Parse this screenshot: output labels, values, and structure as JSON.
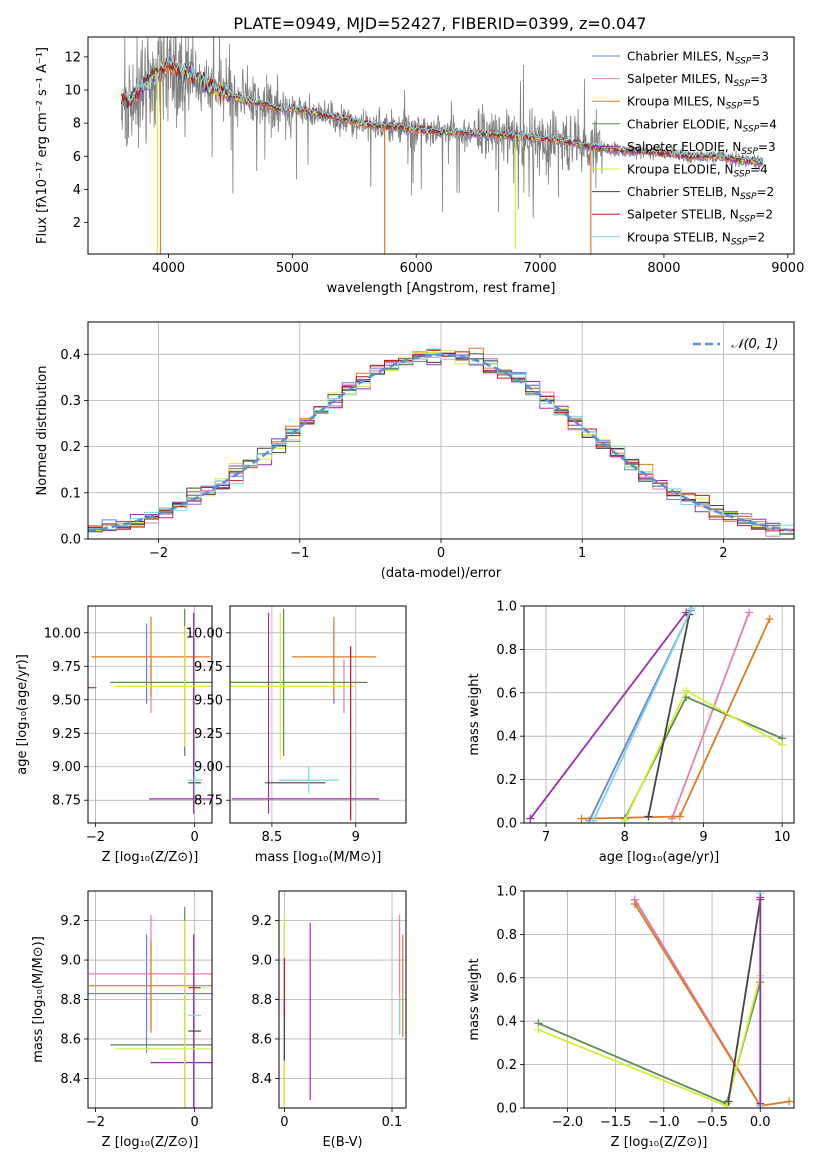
{
  "page_title": "PLATE=0949, MJD=52427, FIBERID=0399, z=0.047",
  "colors": {
    "Chabrier MILES": "#6b7fd7",
    "Salpeter MILES": "#e57fb1",
    "Kroupa MILES": "#e07a22",
    "Chabrier ELODIE": "#5a8a55",
    "Salpeter ELODIE": "#9b2fae",
    "Kroupa ELODIE": "#d4ef3a",
    "Chabrier STELIB": "#444444",
    "Salpeter STELIB": "#c2181f",
    "Kroupa STELIB": "#7fd6e0",
    "data": "#808080",
    "normal": "#5b8fd6"
  },
  "chart_data": [
    {
      "id": "spectrum",
      "type": "line",
      "title": "PLATE=0949, MJD=52427, FIBERID=0399, z=0.047",
      "xlabel": "wavelength [Angstrom, rest frame]",
      "ylabel": "Flux [fλ10⁻¹⁷ erg cm⁻² s⁻¹ A⁻¹]",
      "xlim": [
        3350,
        9050
      ],
      "ylim": [
        0.1,
        13.2
      ],
      "xticks": [
        4000,
        5000,
        6000,
        7000,
        8000,
        9000
      ],
      "yticks": [
        2,
        4,
        6,
        8,
        10,
        12
      ],
      "grid": false,
      "legend_position": "top-right",
      "legend": [
        {
          "label": "Chabrier MILES, N",
          "sub": "SSP",
          "tail": "=3",
          "color": "#6b7fd7"
        },
        {
          "label": "Salpeter MILES, N",
          "sub": "SSP",
          "tail": "=3",
          "color": "#e57fb1"
        },
        {
          "label": "Kroupa MILES, N",
          "sub": "SSP",
          "tail": "=5",
          "color": "#e07a22"
        },
        {
          "label": "Chabrier ELODIE, N",
          "sub": "SSP",
          "tail": "=4",
          "color": "#5a8a55"
        },
        {
          "label": "Salpeter ELODIE, N",
          "sub": "SSP",
          "tail": "=3",
          "color": "#9b2fae"
        },
        {
          "label": "Kroupa ELODIE, N",
          "sub": "SSP",
          "tail": "=4",
          "color": "#d4ef3a"
        },
        {
          "label": "Chabrier STELIB, N",
          "sub": "SSP",
          "tail": "=2",
          "color": "#444444"
        },
        {
          "label": "Salpeter STELIB, N",
          "sub": "SSP",
          "tail": "=2",
          "color": "#c2181f"
        },
        {
          "label": "Kroupa STELIB, N",
          "sub": "SSP",
          "tail": "=2",
          "color": "#7fd6e0"
        }
      ],
      "continuum": {
        "x": [
          3620,
          3700,
          3800,
          3900,
          4000,
          4100,
          4200,
          4300,
          4400,
          4500,
          4600,
          4700,
          4800,
          4900,
          5000,
          5200,
          5400,
          5600,
          5800,
          6000,
          6200,
          6400,
          6600,
          6800,
          7000,
          7200,
          7400,
          7600,
          7800,
          8000,
          8200,
          8400,
          8600,
          8800
        ],
        "y": [
          9.6,
          9.4,
          10.3,
          10.9,
          11.6,
          11.1,
          10.9,
          10.3,
          10.0,
          9.7,
          9.4,
          9.3,
          9.1,
          8.8,
          8.9,
          8.6,
          8.3,
          7.9,
          7.8,
          7.6,
          7.5,
          7.4,
          7.3,
          7.2,
          7.1,
          6.9,
          6.6,
          6.4,
          6.3,
          6.2,
          6.0,
          6.0,
          5.8,
          5.6
        ]
      },
      "spikes": [
        {
          "x": 3910,
          "y": 0.1,
          "color": "#d4ef3a"
        },
        {
          "x": 3935,
          "y": 0.1,
          "color": "#e07a22"
        },
        {
          "x": 5745,
          "y": 0.1,
          "color": "#e07a22"
        },
        {
          "x": 6800,
          "y": 0.4,
          "color": "#d4ef3a"
        },
        {
          "x": 7410,
          "y": 0.1,
          "color": "#e07a22"
        }
      ]
    },
    {
      "id": "residuals",
      "type": "bar",
      "xlabel": "(data-model)/error",
      "ylabel": "Normed distribution",
      "xlim": [
        -2.5,
        2.5
      ],
      "ylim": [
        0.0,
        0.47
      ],
      "xticks": [
        -2,
        -1,
        0,
        1,
        2
      ],
      "yticks": [
        0.0,
        0.1,
        0.2,
        0.3,
        0.4
      ],
      "grid": true,
      "bin_width": 0.1,
      "legend": [
        {
          "label": "𝒩(0, 1)",
          "color": "#5b8fd6",
          "style": "dashed"
        }
      ],
      "legend_position": "top-right"
    },
    {
      "id": "age-vs-Z",
      "type": "scatter",
      "xlabel": "Z [log₁₀(Z/Z⊙)]",
      "ylabel": "age  [log₁₀(age/yr)]",
      "xlim": [
        -2.15,
        0.35
      ],
      "ylim": [
        8.58,
        10.2
      ],
      "xticks": [
        -2,
        0
      ],
      "yticks": [
        8.75,
        9.0,
        9.25,
        9.5,
        9.75,
        10.0
      ],
      "ytick_labels": [
        "8.75",
        "9.00",
        "9.25",
        "9.50",
        "9.75",
        "10.00"
      ],
      "grid": true,
      "series": [
        {
          "color": "#6b7fd7",
          "x": -0.97,
          "y": 9.77,
          "xerr": 0.0,
          "yerr": 0.3
        },
        {
          "color": "#e57fb1",
          "x": -0.88,
          "y": 9.6,
          "xerr": 0.0,
          "yerr": 0.2
        },
        {
          "color": "#e07a22",
          "x": -0.88,
          "y": 9.82,
          "xerr": 1.2,
          "yerr": 0.3
        },
        {
          "color": "#5a8a55",
          "x": -0.2,
          "y": 9.63,
          "xerr": 1.5,
          "yerr": 0.55
        },
        {
          "color": "#9b2fae",
          "x": -2.1,
          "y": 9.59,
          "xerr": 0.0,
          "yerr": 0.0
        },
        {
          "color": "#9b2fae",
          "x": -0.02,
          "y": 9.4,
          "xerr": 0.0,
          "yerr": 0.75
        },
        {
          "color": "#9b2fae",
          "x": -0.02,
          "y": 8.76,
          "xerr": 0.9,
          "yerr": 0.0
        },
        {
          "color": "#d4ef3a",
          "x": -0.2,
          "y": 9.6,
          "xerr": 1.4,
          "yerr": 0.45
        },
        {
          "color": "#444444",
          "x": 0.0,
          "y": 8.88,
          "xerr": 0.13,
          "yerr": 0.0
        },
        {
          "color": "#7fd6e0",
          "x": 0.0,
          "y": 8.9,
          "xerr": 0.15,
          "yerr": 0.1
        }
      ]
    },
    {
      "id": "age-vs-mass",
      "type": "scatter",
      "xlabel": "mass [log₁₀(M/M⊙)]",
      "xlim": [
        8.25,
        9.3
      ],
      "ylim": [
        8.58,
        10.2
      ],
      "xticks": [
        8.5,
        9.0
      ],
      "yticks": [
        8.75,
        9.0,
        9.25,
        9.5,
        9.75,
        10.0
      ],
      "ytick_labels": [
        "8.75",
        "9.00",
        "9.25",
        "9.50",
        "9.75",
        "10.00"
      ],
      "grid": true,
      "series": [
        {
          "color": "#6b7fd7",
          "x": 8.87,
          "y": 9.77,
          "xerr": 0.0,
          "yerr": 0.3
        },
        {
          "color": "#e57fb1",
          "x": 8.93,
          "y": 9.6,
          "xerr": 0.0,
          "yerr": 0.2
        },
        {
          "color": "#e07a22",
          "x": 8.87,
          "y": 9.82,
          "xerr": 0.25,
          "yerr": 0.3
        },
        {
          "color": "#5a8a55",
          "x": 8.57,
          "y": 9.63,
          "xerr": 0.5,
          "yerr": 0.55
        },
        {
          "color": "#9b2fae",
          "x": 8.48,
          "y": 9.4,
          "xerr": 0.0,
          "yerr": 0.75
        },
        {
          "color": "#9b2fae",
          "x": 8.7,
          "y": 8.76,
          "xerr": 0.44,
          "yerr": 0.0
        },
        {
          "color": "#d4ef3a",
          "x": 8.55,
          "y": 9.6,
          "xerr": 0.45,
          "yerr": 0.55
        },
        {
          "color": "#444444",
          "x": 8.64,
          "y": 8.88,
          "xerr": 0.18,
          "yerr": 0.0
        },
        {
          "color": "#7fd6e0",
          "x": 8.72,
          "y": 8.9,
          "xerr": 0.18,
          "yerr": 0.1
        },
        {
          "color": "#c2181f",
          "x": 8.97,
          "y": 9.25,
          "xerr": 0.0,
          "yerr": 0.65
        }
      ]
    },
    {
      "id": "weight-vs-age",
      "type": "line",
      "xlabel": "age  [log₁₀(age/yr)]",
      "ylabel": "mass weight",
      "xlim": [
        6.72,
        10.15
      ],
      "ylim": [
        0.0,
        1.0
      ],
      "xticks": [
        7,
        8,
        9,
        10
      ],
      "yticks": [
        0.0,
        0.2,
        0.4,
        0.6,
        0.8,
        1.0
      ],
      "grid": true,
      "series": [
        {
          "color": "#6b7fd7",
          "x": [
            7.55,
            8.84
          ],
          "y": [
            0.01,
            0.98
          ]
        },
        {
          "color": "#e57fb1",
          "x": [
            8.6,
            9.58
          ],
          "y": [
            0.02,
            0.97
          ]
        },
        {
          "color": "#e07a22",
          "x": [
            7.45,
            8.7,
            9.84
          ],
          "y": [
            0.02,
            0.03,
            0.94
          ]
        },
        {
          "color": "#5a8a55",
          "x": [
            8.0,
            8.78,
            10.0
          ],
          "y": [
            0.02,
            0.58,
            0.39
          ]
        },
        {
          "color": "#9b2fae",
          "x": [
            6.8,
            8.78
          ],
          "y": [
            0.02,
            0.97
          ]
        },
        {
          "color": "#d4ef3a",
          "x": [
            8.0,
            8.78,
            10.0
          ],
          "y": [
            0.01,
            0.61,
            0.36
          ]
        },
        {
          "color": "#444444",
          "x": [
            8.3,
            8.82
          ],
          "y": [
            0.03,
            0.96
          ]
        },
        {
          "color": "#7fd6e0",
          "x": [
            7.6,
            8.85
          ],
          "y": [
            0.01,
            0.99
          ]
        }
      ]
    },
    {
      "id": "mass-vs-Z",
      "type": "scatter",
      "xlabel": "Z [log₁₀(Z/Z⊙)]",
      "ylabel": "mass [log₁₀(M/M⊙)]",
      "xlim": [
        -2.15,
        0.35
      ],
      "ylim": [
        8.25,
        9.35
      ],
      "xticks": [
        -2,
        0
      ],
      "yticks": [
        8.4,
        8.6,
        8.8,
        9.0,
        9.2
      ],
      "grid": true,
      "series": [
        {
          "color": "#6b7fd7",
          "x": -0.97,
          "y": 8.83,
          "xerr": 1.8,
          "yerr": 0.3
        },
        {
          "color": "#e57fb1",
          "x": -0.88,
          "y": 8.93,
          "xerr": 1.25,
          "yerr": 0.3
        },
        {
          "color": "#e07a22",
          "x": -0.88,
          "y": 8.87,
          "xerr": 1.25,
          "yerr": 0.23
        },
        {
          "color": "#5a8a55",
          "x": -0.2,
          "y": 8.57,
          "xerr": 1.5,
          "yerr": 0.7
        },
        {
          "color": "#9b2fae",
          "x": -0.02,
          "y": 8.48,
          "xerr": 0.87,
          "yerr": 0.65
        },
        {
          "color": "#d4ef3a",
          "x": -0.2,
          "y": 8.55,
          "xerr": 1.4,
          "yerr": 0.65
        },
        {
          "color": "#444444",
          "x": 0.0,
          "y": 8.64,
          "xerr": 0.13,
          "yerr": 0.0
        },
        {
          "color": "#7fd6e0",
          "x": 0.0,
          "y": 8.72,
          "xerr": 0.13,
          "yerr": 0.0
        },
        {
          "color": "#c2181f",
          "x": 0.0,
          "y": 8.86,
          "xerr": 0.12,
          "yerr": 0.0
        }
      ]
    },
    {
      "id": "mass-vs-EBV",
      "type": "scatter",
      "xlabel": "E(B-V)",
      "xlim": [
        -0.005,
        0.113
      ],
      "ylim": [
        8.25,
        9.35
      ],
      "xticks": [
        0.0,
        0.1
      ],
      "yticks": [
        8.4,
        8.6,
        8.8,
        9.0,
        9.2
      ],
      "grid": true,
      "series": [
        {
          "color": "#6b7fd7",
          "x": 0.0,
          "y": 8.83,
          "xerr": 0.0,
          "yerr": 0.35
        },
        {
          "color": "#e57fb1",
          "x": 0.107,
          "y": 8.93,
          "xerr": 0.0,
          "yerr": 0.3
        },
        {
          "color": "#e07a22",
          "x": 0.11,
          "y": 8.87,
          "xerr": 0.0,
          "yerr": 0.26
        },
        {
          "color": "#5a8a55",
          "x": 0.0,
          "y": 8.57,
          "xerr": 0.0,
          "yerr": 0.4
        },
        {
          "color": "#9b2fae",
          "x": 0.024,
          "y": 8.74,
          "xerr": 0.0,
          "yerr": 0.45
        },
        {
          "color": "#d4ef3a",
          "x": 0.0,
          "y": 8.55,
          "xerr": 0.0,
          "yerr": 0.68
        },
        {
          "color": "#444444",
          "x": 0.0,
          "y": 8.64,
          "xerr": 0.0,
          "yerr": 0.15
        },
        {
          "color": "#7fd6e0",
          "x": 0.107,
          "y": 8.72,
          "xerr": 0.0,
          "yerr": 0.1
        },
        {
          "color": "#c2181f",
          "x": 0.0,
          "y": 8.86,
          "xerr": 0.0,
          "yerr": 0.15
        }
      ]
    },
    {
      "id": "weight-vs-Z",
      "type": "line",
      "xlabel": "Z [log₁₀(Z/Z⊙)]",
      "ylabel": "mass weight",
      "xlim": [
        -2.45,
        0.35
      ],
      "ylim": [
        0.0,
        1.0
      ],
      "xticks": [
        -2.0,
        -1.5,
        -1.0,
        -0.5,
        0.0
      ],
      "xtick_labels": [
        "−2.0",
        "−1.5",
        "−1.0",
        "−0.5",
        "0.0"
      ],
      "yticks": [
        0.0,
        0.2,
        0.4,
        0.6,
        0.8,
        1.0
      ],
      "grid": true,
      "series": [
        {
          "color": "#6b7fd7",
          "x": [
            -1.3,
            0.0
          ],
          "y": [
            0.96,
            0.01
          ]
        },
        {
          "color": "#e57fb1",
          "x": [
            -1.3,
            0.0
          ],
          "y": [
            0.96,
            0.01
          ]
        },
        {
          "color": "#e07a22",
          "x": [
            -1.3,
            0.0,
            0.3
          ],
          "y": [
            0.94,
            0.01,
            0.03
          ]
        },
        {
          "color": "#5a8a55",
          "x": [
            -2.3,
            -0.35,
            0.0
          ],
          "y": [
            0.39,
            0.02,
            0.58
          ]
        },
        {
          "color": "#d4ef3a",
          "x": [
            -2.3,
            -0.35,
            0.0
          ],
          "y": [
            0.36,
            0.01,
            0.61
          ]
        },
        {
          "color": "#444444",
          "x": [
            -0.33,
            0.0
          ],
          "y": [
            0.03,
            0.96
          ]
        },
        {
          "color": "#7fd6e0",
          "x": [
            0.0,
            0.0
          ],
          "y": [
            0.01,
            0.99
          ]
        },
        {
          "color": "#9b2fae",
          "x": [
            0.0,
            0.0
          ],
          "y": [
            0.02,
            0.97
          ]
        }
      ]
    }
  ]
}
